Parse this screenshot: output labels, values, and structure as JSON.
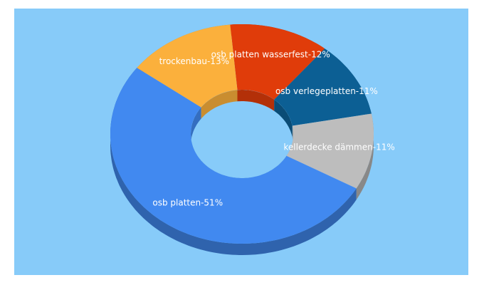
{
  "chart_data": {
    "type": "donut3d",
    "categories": [
      "osb platten wasserfest-12%",
      "osb verlegeplatten-11%",
      "kellerdecke dämmen-11%",
      "osb platten-51%",
      "trockenbau-13%"
    ],
    "values": [
      12,
      11,
      11,
      51,
      13
    ],
    "colors": [
      "#e03c0a",
      "#0c5f94",
      "#bdbdbd",
      "#4189f0",
      "#fbb03c"
    ],
    "background": "#87cbf9"
  }
}
